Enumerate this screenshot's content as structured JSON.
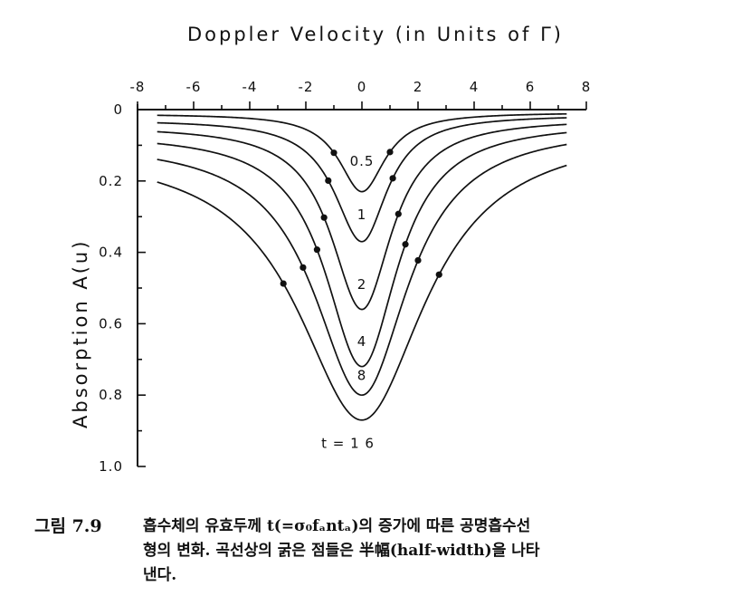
{
  "chart_data": {
    "type": "line",
    "title": "",
    "xlabel": "Doppler  Velocity  (in Units of Γ)",
    "ylabel": "Absorption   A(u)",
    "xlim": [
      -8,
      8
    ],
    "ylim": [
      0,
      1.0
    ],
    "y_inverted": true,
    "x_axis_position": "top",
    "x_ticks": [
      -8,
      -6,
      -4,
      -2,
      0,
      2,
      4,
      6,
      8
    ],
    "x_tick_labels": [
      "-8",
      "-6",
      "-4",
      "-2",
      "0",
      "2",
      "4",
      "6",
      "8"
    ],
    "y_ticks": [
      0,
      0.2,
      0.4,
      0.6,
      0.8,
      1.0
    ],
    "y_tick_labels": [
      "0",
      "0.2",
      "0.4",
      "0.6",
      "0.8",
      "1.0"
    ],
    "grid": false,
    "x_range_plotted": [
      -7.3,
      7.3
    ],
    "x_step": 0.05,
    "series": [
      {
        "name": "0.5",
        "label": "0.5",
        "t": 0.5,
        "peak": 0.23,
        "baseline_left": 0.012,
        "baseline_right": 0.008,
        "half_width_x": [
          -1.0,
          1.0
        ],
        "label_at": [
          0,
          0.145
        ]
      },
      {
        "name": "1",
        "label": "1",
        "t": 1,
        "peak": 0.37,
        "baseline_left": 0.028,
        "baseline_right": 0.015,
        "half_width_x": [
          -1.2,
          1.1
        ],
        "label_at": [
          0,
          0.295
        ]
      },
      {
        "name": "2",
        "label": "2",
        "t": 2,
        "peak": 0.56,
        "baseline_left": 0.045,
        "baseline_right": 0.025,
        "half_width_x": [
          -1.35,
          1.3
        ],
        "label_at": [
          0,
          0.49
        ]
      },
      {
        "name": "4",
        "label": "4",
        "t": 4,
        "peak": 0.72,
        "baseline_left": 0.065,
        "baseline_right": 0.035,
        "half_width_x": [
          -1.6,
          1.55
        ],
        "label_at": [
          0,
          0.65
        ]
      },
      {
        "name": "8",
        "label": "8",
        "t": 8,
        "peak": 0.8,
        "baseline_left": 0.085,
        "baseline_right": 0.045,
        "half_width_x": [
          -2.1,
          2.0
        ],
        "label_at": [
          0,
          0.745
        ]
      },
      {
        "name": "16",
        "label": "t  =  1 6",
        "t": 16,
        "peak": 0.87,
        "baseline_left": 0.105,
        "baseline_right": 0.055,
        "half_width_x": [
          -2.8,
          2.75
        ],
        "label_at": [
          -0.5,
          0.935
        ]
      }
    ]
  },
  "caption": {
    "number": "그림 7.9",
    "line1": "흡수체의 유효두께 t(=σ₀fₐntₐ)의 증가에 따른 공명흡수선",
    "line2": "형의 변화. 곡선상의 굵은 점들은 半幅(half-width)을 나타",
    "line3": "낸다."
  }
}
